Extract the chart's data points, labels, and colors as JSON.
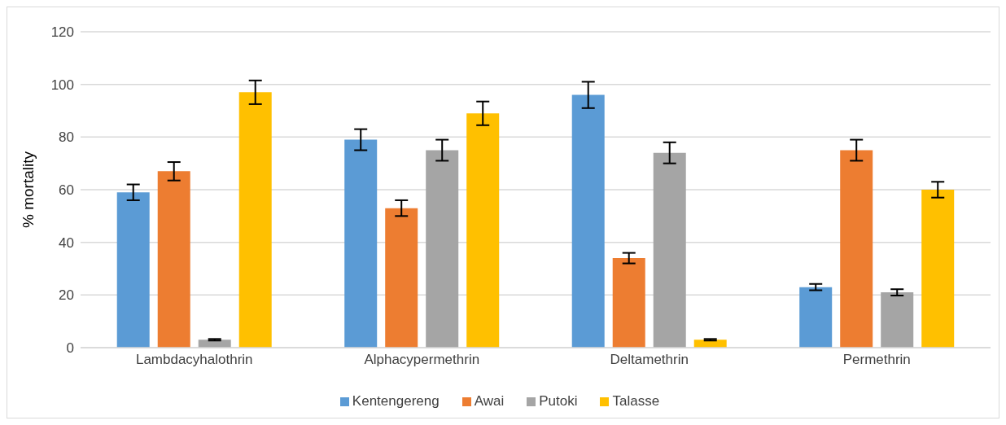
{
  "chart_data": {
    "type": "bar",
    "ylabel": "% mortality",
    "categories": [
      "Lambdacyhalothrin",
      "Alphacypermethrin",
      "Deltamethrin",
      "Permethrin"
    ],
    "series": [
      {
        "name": "Kentengereng",
        "color": "#5b9bd5",
        "values": [
          59,
          79,
          96,
          23
        ],
        "errors": [
          3,
          4,
          5,
          1.2
        ]
      },
      {
        "name": "Awai",
        "color": "#ed7d31",
        "values": [
          67,
          53,
          34,
          75
        ],
        "errors": [
          3.5,
          3,
          2,
          4
        ]
      },
      {
        "name": "Putoki",
        "color": "#a5a5a5",
        "values": [
          3,
          75,
          74,
          21
        ],
        "errors": [
          0.3,
          4,
          4,
          1.2
        ]
      },
      {
        "name": "Talasse",
        "color": "#ffc000",
        "values": [
          97,
          89,
          3,
          60
        ],
        "errors": [
          4.5,
          4.5,
          0.3,
          3
        ]
      }
    ],
    "ylim": [
      0,
      120
    ],
    "yticks": [
      0,
      20,
      40,
      60,
      80,
      100,
      120
    ],
    "grid": "y",
    "legend": "bottom"
  }
}
